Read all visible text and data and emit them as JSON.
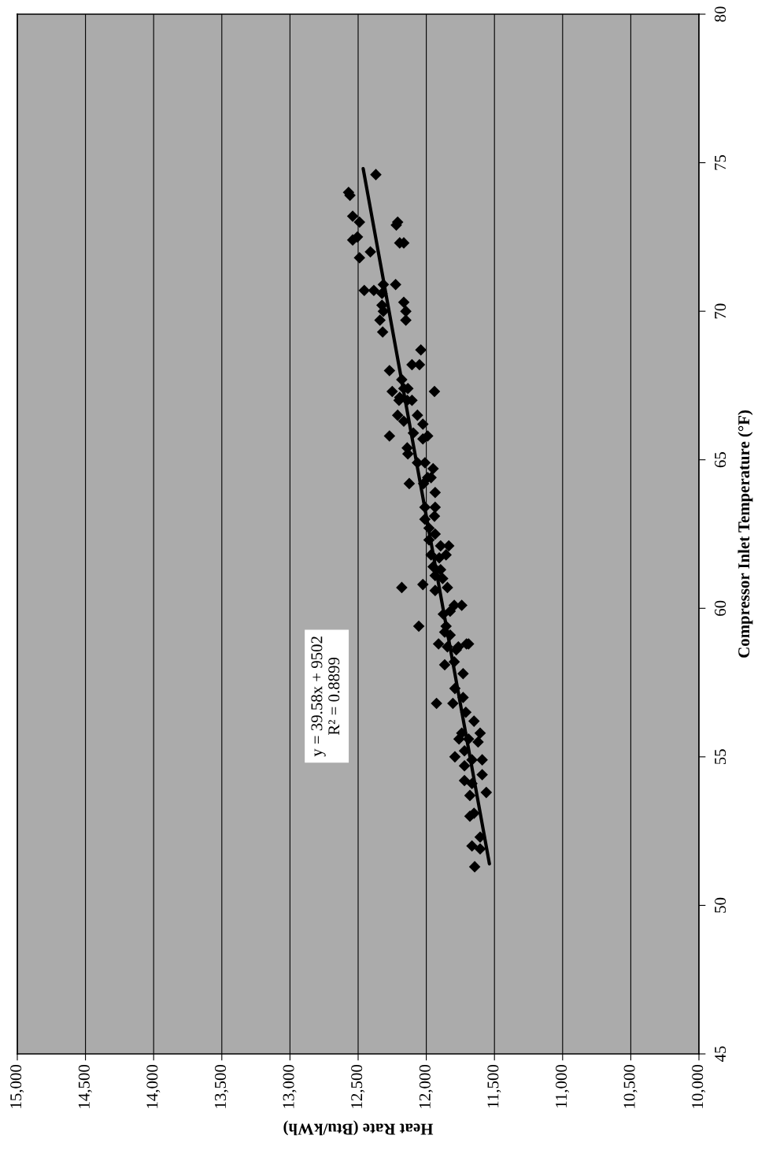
{
  "chart_data": {
    "type": "scatter",
    "xlabel": "Heat Rate (Btu/kWh)",
    "ylabel": "Compressor Inlet Temperature (°F)",
    "annotations": [
      "y = 39.58x + 9502\nR² = 0.8899"
    ],
    "xlim": [
      15000,
      10000
    ],
    "xticks": [
      {
        "value": 15000,
        "label": "15,000"
      },
      {
        "value": 14500,
        "label": "14,500"
      },
      {
        "value": 14000,
        "label": "14,000"
      },
      {
        "value": 13500,
        "label": "13,500"
      },
      {
        "value": 13000,
        "label": "13,000"
      },
      {
        "value": 12500,
        "label": "12,500"
      },
      {
        "value": 12000,
        "label": "12,000"
      },
      {
        "value": 11500,
        "label": "11,500"
      },
      {
        "value": 11000,
        "label": "11,000"
      },
      {
        "value": 10500,
        "label": "10,500"
      },
      {
        "value": 10000,
        "label": "10,000"
      }
    ],
    "ylim": [
      45,
      80
    ],
    "yticks": [
      45,
      50,
      55,
      60,
      65,
      70,
      75,
      80
    ],
    "grid": "x",
    "series": [
      {
        "marker": "diamond",
        "color": "#000000",
        "x": [
          12370,
          12570,
          12560,
          12540,
          12490,
          12210,
          12220,
          12540,
          12505,
          12195,
          12165,
          12490,
          12410,
          12455,
          12385,
          12315,
          12325,
          12225,
          12325,
          12315,
          12165,
          12150,
          12340,
          12150,
          12320,
          12040,
          12270,
          12105,
          12050,
          12180,
          12250,
          12165,
          12135,
          11940,
          12195,
          12105,
          12200,
          12140,
          12210,
          12065,
          12165,
          12025,
          12270,
          12095,
          12025,
          11990,
          12140,
          12135,
          12065,
          12010,
          11950,
          11990,
          11965,
          12125,
          12020,
          11935,
          12010,
          11935,
          12010,
          11940,
          11980,
          11935,
          11980,
          11895,
          11835,
          11965,
          11905,
          11855,
          11950,
          11895,
          11935,
          11880,
          12180,
          12025,
          11935,
          11845,
          11795,
          11740,
          11875,
          11825,
          12055,
          11855,
          11865,
          11825,
          11910,
          11765,
          11690,
          11845,
          11780,
          11705,
          11865,
          11795,
          11730,
          11790,
          11925,
          11805,
          11730,
          11710,
          11650,
          11605,
          11740,
          11760,
          11690,
          11620,
          11790,
          11720,
          11665,
          11590,
          11720,
          11590,
          11720,
          11665,
          11680,
          11560,
          11680,
          11650,
          11605,
          11665,
          11605,
          11645
        ],
        "values": [
          74.6,
          74.0,
          73.9,
          73.2,
          73.0,
          73.0,
          72.9,
          72.4,
          72.5,
          72.3,
          72.3,
          71.8,
          72.0,
          70.7,
          70.7,
          70.9,
          70.6,
          70.9,
          70.2,
          70.0,
          70.3,
          70.0,
          69.7,
          69.7,
          69.3,
          68.7,
          68.0,
          68.2,
          68.2,
          67.7,
          67.3,
          67.4,
          67.4,
          67.3,
          67.1,
          67.0,
          67.0,
          67.0,
          66.5,
          66.5,
          66.3,
          66.2,
          65.8,
          65.9,
          65.7,
          65.8,
          65.4,
          65.2,
          64.9,
          64.9,
          64.7,
          64.4,
          64.4,
          64.2,
          64.2,
          63.9,
          63.4,
          63.4,
          63.0,
          63.1,
          62.7,
          62.5,
          62.3,
          62.1,
          62.1,
          61.8,
          61.7,
          61.8,
          61.4,
          61.3,
          61.1,
          61.0,
          60.7,
          60.8,
          60.6,
          60.7,
          60.1,
          60.1,
          59.8,
          59.9,
          59.4,
          59.4,
          59.2,
          59.1,
          58.8,
          58.7,
          58.8,
          58.7,
          58.6,
          58.8,
          58.1,
          58.2,
          57.8,
          57.3,
          56.8,
          56.8,
          57.0,
          56.5,
          56.2,
          55.8,
          55.8,
          55.6,
          55.6,
          55.5,
          55.0,
          55.2,
          54.9,
          54.9,
          54.7,
          54.4,
          54.2,
          54.1,
          53.7,
          53.8,
          53.0,
          53.1,
          52.3,
          52.0,
          51.9,
          51.3
        ]
      },
      {
        "type": "line",
        "marker": "none",
        "color": "#000000",
        "x": [
          11537,
          12463
        ],
        "values": [
          51.4,
          74.8
        ]
      }
    ]
  }
}
